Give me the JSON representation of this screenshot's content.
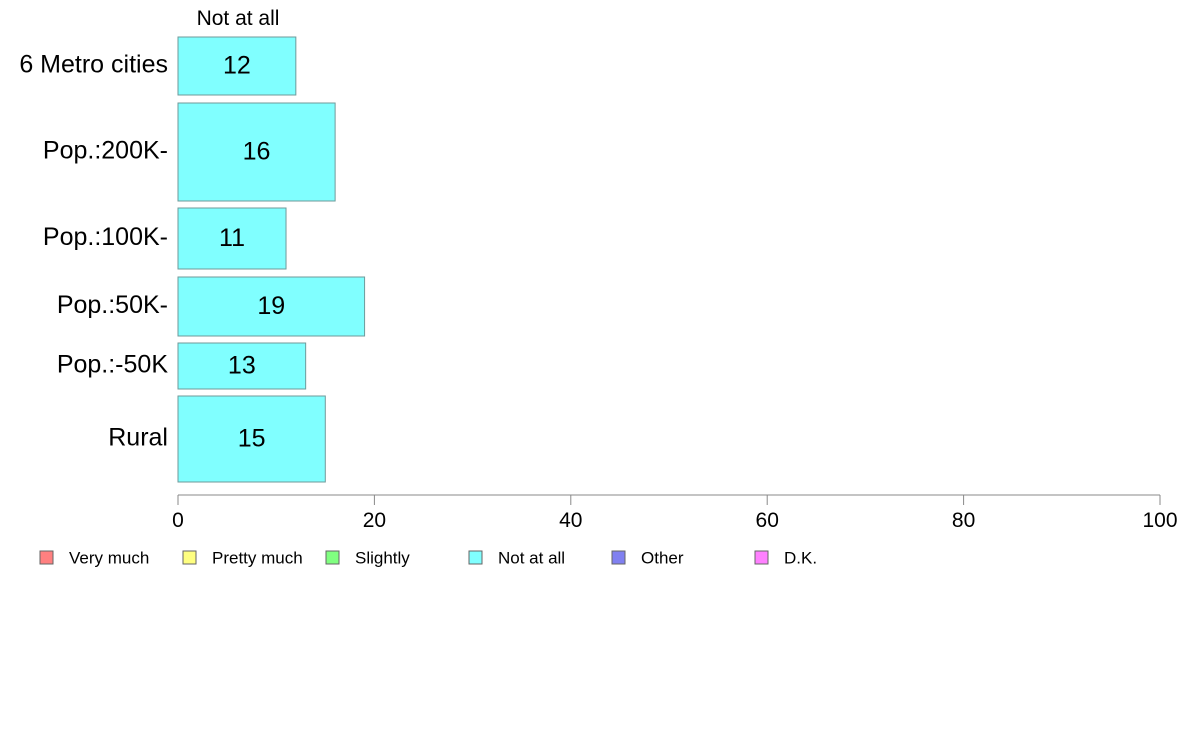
{
  "chart_data": {
    "type": "bar",
    "orientation": "horizontal",
    "stacked": true,
    "title": "",
    "xlabel": "",
    "ylabel": "",
    "xlim": [
      0,
      100
    ],
    "x_ticks": [
      "0",
      "20",
      "40",
      "60",
      "80",
      "100"
    ],
    "categories": [
      "6 Metro cities",
      "Pop.:200K-",
      "Pop.:100K-",
      "Pop.:50K-",
      "Pop.:-50K",
      "Rural"
    ],
    "series": [
      {
        "name": "Very much",
        "values": [
          0,
          0,
          0,
          0,
          0,
          0
        ],
        "color": "#ff8080"
      },
      {
        "name": "Pretty much",
        "values": [
          0,
          0,
          0,
          0,
          0,
          0
        ],
        "color": "#ffff80"
      },
      {
        "name": "Slightly",
        "values": [
          0,
          0,
          0,
          0,
          0,
          0
        ],
        "color": "#80ff80"
      },
      {
        "name": "Not at all",
        "values": [
          12,
          16,
          11,
          19,
          13,
          15
        ],
        "color": "#80ffff"
      },
      {
        "name": "Other",
        "values": [
          0,
          0,
          0,
          0,
          0,
          0
        ],
        "color": "#8080f0"
      },
      {
        "name": "D.K.",
        "values": [
          0,
          0,
          0,
          0,
          0,
          0
        ],
        "color": "#ff80ff"
      }
    ],
    "header_series_label": "Not at all",
    "legend_position": "bottom",
    "grid": false
  }
}
